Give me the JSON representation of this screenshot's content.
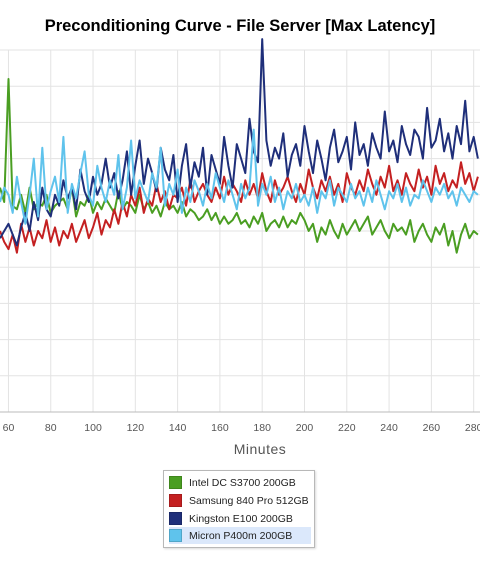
{
  "chart_data": {
    "type": "line",
    "title": "Preconditioning Curve - File Server [Max Latency]",
    "xlabel": "Minutes",
    "ylabel": "",
    "xlim": [
      56,
      283
    ],
    "ylim": [
      0,
      100
    ],
    "grid": true,
    "legend_position": "bottom",
    "x_ticks": [
      60,
      80,
      100,
      120,
      140,
      160,
      180,
      200,
      220,
      240,
      260,
      280
    ],
    "x": [
      56,
      58,
      60,
      62,
      64,
      66,
      68,
      70,
      72,
      74,
      76,
      78,
      80,
      82,
      84,
      86,
      88,
      90,
      92,
      94,
      96,
      98,
      100,
      102,
      104,
      106,
      108,
      110,
      112,
      114,
      116,
      118,
      120,
      122,
      124,
      126,
      128,
      130,
      132,
      134,
      136,
      138,
      140,
      142,
      144,
      146,
      148,
      150,
      152,
      154,
      156,
      158,
      160,
      162,
      164,
      166,
      168,
      170,
      172,
      174,
      176,
      178,
      180,
      182,
      184,
      186,
      188,
      190,
      192,
      194,
      196,
      198,
      200,
      202,
      204,
      206,
      208,
      210,
      212,
      214,
      216,
      218,
      220,
      222,
      224,
      226,
      228,
      230,
      232,
      234,
      236,
      238,
      240,
      242,
      244,
      246,
      248,
      250,
      252,
      254,
      256,
      258,
      260,
      262,
      264,
      266,
      268,
      270,
      272,
      274,
      276,
      278,
      280,
      282
    ],
    "series": [
      {
        "name": "Intel DC S3700 200GB",
        "color": "#4a9e22",
        "values": [
          62,
          58,
          92,
          57,
          56,
          60,
          55,
          62,
          56,
          58,
          57,
          60,
          55,
          57,
          58,
          59,
          56,
          62,
          54,
          58,
          57,
          60,
          55,
          58,
          56,
          59,
          57,
          55,
          61,
          56,
          58,
          57,
          55,
          60,
          56,
          58,
          55,
          57,
          54,
          58,
          56,
          57,
          55,
          58,
          54,
          56,
          55,
          53,
          54,
          56,
          53,
          55,
          52,
          54,
          52,
          53,
          55,
          52,
          53,
          51,
          54,
          52,
          55,
          50,
          52,
          53,
          51,
          54,
          51,
          53,
          52,
          55,
          53,
          50,
          52,
          47,
          51,
          49,
          53,
          50,
          48,
          52,
          49,
          51,
          53,
          50,
          52,
          54,
          49,
          51,
          53,
          50,
          48,
          52,
          50,
          51,
          49,
          53,
          47,
          50,
          52,
          49,
          47,
          51,
          49,
          52,
          46,
          50,
          44,
          49,
          52,
          48,
          50,
          49
        ]
      },
      {
        "name": "Samsung 840 Pro 512GB",
        "color": "#c42021",
        "values": [
          50,
          47,
          45,
          49,
          44,
          52,
          47,
          51,
          46,
          50,
          48,
          53,
          47,
          51,
          46,
          50,
          48,
          52,
          47,
          50,
          53,
          48,
          51,
          55,
          49,
          53,
          51,
          56,
          52,
          58,
          54,
          60,
          57,
          62,
          55,
          59,
          57,
          63,
          58,
          61,
          56,
          60,
          59,
          62,
          57,
          64,
          58,
          61,
          63,
          60,
          58,
          62,
          59,
          65,
          60,
          63,
          61,
          58,
          64,
          60,
          63,
          59,
          66,
          61,
          58,
          64,
          60,
          62,
          65,
          61,
          58,
          63,
          60,
          67,
          62,
          59,
          64,
          61,
          65,
          60,
          63,
          58,
          66,
          62,
          60,
          64,
          61,
          67,
          63,
          60,
          65,
          62,
          68,
          61,
          64,
          60,
          66,
          63,
          61,
          67,
          62,
          65,
          60,
          68,
          63,
          66,
          61,
          64,
          62,
          69,
          63,
          66,
          61,
          65
        ]
      },
      {
        "name": "Kingston E100 200GB",
        "color": "#1f2f7a",
        "values": [
          48,
          50,
          52,
          49,
          46,
          51,
          55,
          50,
          58,
          53,
          62,
          56,
          54,
          60,
          57,
          64,
          59,
          62,
          56,
          67,
          61,
          58,
          65,
          60,
          63,
          70,
          62,
          66,
          59,
          64,
          72,
          60,
          68,
          75,
          63,
          70,
          66,
          61,
          73,
          67,
          64,
          71,
          58,
          68,
          74,
          62,
          69,
          65,
          73,
          60,
          71,
          67,
          63,
          76,
          68,
          62,
          74,
          70,
          66,
          81,
          72,
          69,
          103,
          75,
          68,
          73,
          70,
          77,
          65,
          71,
          74,
          68,
          79,
          72,
          66,
          75,
          70,
          64,
          73,
          78,
          69,
          72,
          76,
          67,
          80,
          71,
          74,
          68,
          77,
          73,
          70,
          83,
          72,
          75,
          69,
          79,
          74,
          71,
          78,
          76,
          70,
          84,
          73,
          75,
          81,
          72,
          77,
          70,
          79,
          74,
          86,
          72,
          76,
          70
        ]
      },
      {
        "name": "Micron P400m 200GB",
        "color": "#5fc3ec",
        "values": [
          58,
          62,
          60,
          55,
          65,
          58,
          52,
          60,
          70,
          54,
          73,
          56,
          61,
          65,
          58,
          76,
          55,
          63,
          59,
          66,
          72,
          60,
          57,
          68,
          62,
          58,
          64,
          60,
          71,
          56,
          62,
          75,
          59,
          64,
          61,
          58,
          66,
          62,
          73,
          57,
          63,
          60,
          67,
          55,
          62,
          58,
          64,
          61,
          57,
          63,
          59,
          66,
          62,
          58,
          64,
          60,
          56,
          63,
          59,
          62,
          78,
          57,
          63,
          60,
          65,
          58,
          62,
          56,
          61,
          59,
          63,
          58,
          60,
          57,
          62,
          55,
          61,
          59,
          64,
          57,
          62,
          60,
          58,
          63,
          59,
          61,
          57,
          62,
          58,
          64,
          60,
          56,
          61,
          59,
          63,
          58,
          62,
          57,
          60,
          59,
          64,
          61,
          58,
          62,
          60,
          63,
          59,
          61,
          57,
          62,
          60,
          58,
          61,
          60
        ]
      }
    ]
  },
  "legend": {
    "items": [
      {
        "label": "Intel DC S3700 200GB",
        "color": "#4a9e22"
      },
      {
        "label": "Samsung 840 Pro 512GB",
        "color": "#c42021"
      },
      {
        "label": "Kingston E100 200GB",
        "color": "#1f2f7a"
      },
      {
        "label": "Micron P400m 200GB",
        "color": "#5fc3ec"
      }
    ]
  }
}
